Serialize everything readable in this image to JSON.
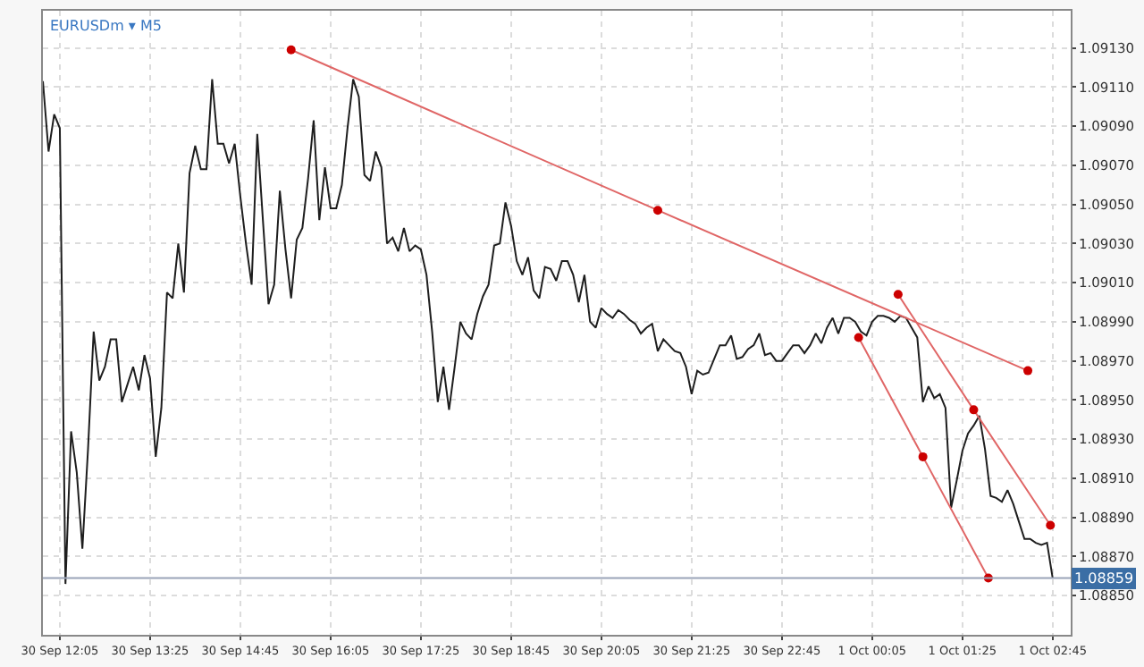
{
  "chart_data": {
    "type": "line",
    "title": "EURUSDm ▾ M5",
    "xlim": [
      "--09-30T11:50",
      "--10-01T03:01"
    ],
    "xticks": [
      {
        "value": "--09-30T12:05",
        "label": "30 Sep 12:05"
      },
      {
        "value": "--09-30T13:25",
        "label": "30 Sep 13:25"
      },
      {
        "value": "--09-30T14:45",
        "label": "30 Sep 14:45"
      },
      {
        "value": "--09-30T16:05",
        "label": "30 Sep 16:05"
      },
      {
        "value": "--09-30T17:25",
        "label": "30 Sep 17:25"
      },
      {
        "value": "--09-30T18:45",
        "label": "30 Sep 18:45"
      },
      {
        "value": "--09-30T20:05",
        "label": "30 Sep 20:05"
      },
      {
        "value": "--09-30T21:25",
        "label": "30 Sep 21:25"
      },
      {
        "value": "--09-30T22:45",
        "label": "30 Sep 22:45"
      },
      {
        "value": "--10-01T00:05",
        "label": "1 Oct 00:05"
      },
      {
        "value": "--10-01T01:25",
        "label": "1 Oct 01:25"
      },
      {
        "value": "--10-01T02:45",
        "label": "1 Oct 02:45"
      }
    ],
    "ylim": [
      1.0883,
      1.09149
    ],
    "yticks": [
      {
        "value": 1.0885,
        "label": "1.08850"
      },
      {
        "value": 1.0887,
        "label": "1.08870"
      },
      {
        "value": 1.0889,
        "label": "1.08890"
      },
      {
        "value": 1.0891,
        "label": "1.08910"
      },
      {
        "value": 1.0893,
        "label": "1.08930"
      },
      {
        "value": 1.0895,
        "label": "1.08950"
      },
      {
        "value": 1.0897,
        "label": "1.08970"
      },
      {
        "value": 1.0899,
        "label": "1.08990"
      },
      {
        "value": 1.0901,
        "label": "1.09010"
      },
      {
        "value": 1.0903,
        "label": "1.09030"
      },
      {
        "value": 1.0905,
        "label": "1.09050"
      },
      {
        "value": 1.0907,
        "label": "1.09070"
      },
      {
        "value": 1.0909,
        "label": "1.09090"
      },
      {
        "value": 1.0911,
        "label": "1.09110"
      },
      {
        "value": 1.0913,
        "label": "1.09130"
      }
    ],
    "grid": true,
    "marker": "none",
    "line_style": "solid",
    "ref_lines": [
      {
        "axis": "y",
        "value": 1.08859,
        "label": "1.08859",
        "color": "#9aa3b8"
      }
    ],
    "series": [
      {
        "color": "#1e1e1e",
        "x": [
          "--09-30T11:50",
          "--09-30T11:55",
          "--09-30T12:00",
          "--09-30T12:05",
          "--09-30T12:10",
          "--09-30T12:15",
          "--09-30T12:20",
          "--09-30T12:25",
          "--09-30T12:30",
          "--09-30T12:35",
          "--09-30T12:40",
          "--09-30T12:45",
          "--09-30T12:50",
          "--09-30T12:55",
          "--09-30T13:00",
          "--09-30T13:05",
          "--09-30T13:10",
          "--09-30T13:15",
          "--09-30T13:20",
          "--09-30T13:25",
          "--09-30T13:30",
          "--09-30T13:35",
          "--09-30T13:40",
          "--09-30T13:45",
          "--09-30T13:50",
          "--09-30T13:55",
          "--09-30T14:00",
          "--09-30T14:05",
          "--09-30T14:10",
          "--09-30T14:15",
          "--09-30T14:20",
          "--09-30T14:25",
          "--09-30T14:30",
          "--09-30T14:35",
          "--09-30T14:40",
          "--09-30T14:45",
          "--09-30T14:50",
          "--09-30T14:55",
          "--09-30T15:00",
          "--09-30T15:05",
          "--09-30T15:10",
          "--09-30T15:15",
          "--09-30T15:20",
          "--09-30T15:25",
          "--09-30T15:30",
          "--09-30T15:35",
          "--09-30T15:40",
          "--09-30T15:45",
          "--09-30T15:50",
          "--09-30T15:55",
          "--09-30T16:00",
          "--09-30T16:05",
          "--09-30T16:10",
          "--09-30T16:15",
          "--09-30T16:20",
          "--09-30T16:25",
          "--09-30T16:30",
          "--09-30T16:35",
          "--09-30T16:40",
          "--09-30T16:45",
          "--09-30T16:50",
          "--09-30T16:55",
          "--09-30T17:00",
          "--09-30T17:05",
          "--09-30T17:10",
          "--09-30T17:15",
          "--09-30T17:20",
          "--09-30T17:25",
          "--09-30T17:30",
          "--09-30T17:35",
          "--09-30T17:40",
          "--09-30T17:45",
          "--09-30T17:50",
          "--09-30T17:55",
          "--09-30T18:00",
          "--09-30T18:05",
          "--09-30T18:10",
          "--09-30T18:15",
          "--09-30T18:20",
          "--09-30T18:25",
          "--09-30T18:30",
          "--09-30T18:35",
          "--09-30T18:40",
          "--09-30T18:45",
          "--09-30T18:50",
          "--09-30T18:55",
          "--09-30T19:00",
          "--09-30T19:05",
          "--09-30T19:10",
          "--09-30T19:15",
          "--09-30T19:20",
          "--09-30T19:25",
          "--09-30T19:30",
          "--09-30T19:35",
          "--09-30T19:40",
          "--09-30T19:45",
          "--09-30T19:50",
          "--09-30T19:55",
          "--09-30T20:00",
          "--09-30T20:05",
          "--09-30T20:10",
          "--09-30T20:15",
          "--09-30T20:20",
          "--09-30T20:25",
          "--09-30T20:30",
          "--09-30T20:35",
          "--09-30T20:40",
          "--09-30T20:45",
          "--09-30T20:50",
          "--09-30T20:55",
          "--09-30T21:00",
          "--09-30T21:05",
          "--09-30T21:10",
          "--09-30T21:15",
          "--09-30T21:20",
          "--09-30T21:25",
          "--09-30T21:30",
          "--09-30T21:35",
          "--09-30T21:40",
          "--09-30T21:45",
          "--09-30T21:50",
          "--09-30T21:55",
          "--09-30T22:00",
          "--09-30T22:05",
          "--09-30T22:10",
          "--09-30T22:15",
          "--09-30T22:20",
          "--09-30T22:25",
          "--09-30T22:30",
          "--09-30T22:35",
          "--09-30T22:40",
          "--09-30T22:45",
          "--09-30T22:50",
          "--09-30T22:55",
          "--09-30T23:00",
          "--09-30T23:05",
          "--09-30T23:10",
          "--09-30T23:15",
          "--09-30T23:20",
          "--09-30T23:25",
          "--09-30T23:30",
          "--09-30T23:35",
          "--09-30T23:40",
          "--09-30T23:45",
          "--09-30T23:50",
          "--09-30T23:55",
          "--10-01T00:00",
          "--10-01T00:05",
          "--10-01T00:10",
          "--10-01T00:15",
          "--10-01T00:20",
          "--10-01T00:25",
          "--10-01T00:30",
          "--10-01T00:35",
          "--10-01T00:40",
          "--10-01T00:45",
          "--10-01T00:50",
          "--10-01T00:55",
          "--10-01T01:00",
          "--10-01T01:05",
          "--10-01T01:10",
          "--10-01T01:15",
          "--10-01T01:20",
          "--10-01T01:25",
          "--10-01T01:30",
          "--10-01T01:35",
          "--10-01T01:40",
          "--10-01T01:45",
          "--10-01T01:50",
          "--10-01T01:55",
          "--10-01T02:00",
          "--10-01T02:05",
          "--10-01T02:10",
          "--10-01T02:15",
          "--10-01T02:20",
          "--10-01T02:25",
          "--10-01T02:30",
          "--10-01T02:35",
          "--10-01T02:40",
          "--10-01T02:45"
        ],
        "values": [
          1.09113,
          1.09077,
          1.09096,
          1.09089,
          1.08856,
          1.08934,
          1.08913,
          1.08874,
          1.08925,
          1.08985,
          1.0896,
          1.08967,
          1.08981,
          1.08981,
          1.08949,
          1.08958,
          1.08967,
          1.08955,
          1.08973,
          1.08961,
          1.08921,
          1.08946,
          1.09005,
          1.09002,
          1.0903,
          1.09005,
          1.09066,
          1.0908,
          1.09068,
          1.09068,
          1.09114,
          1.09081,
          1.09081,
          1.09071,
          1.09081,
          1.09054,
          1.0903,
          1.09009,
          1.09086,
          1.09042,
          1.08999,
          1.09009,
          1.09057,
          1.09027,
          1.09002,
          1.09032,
          1.09038,
          1.09063,
          1.09093,
          1.09042,
          1.09069,
          1.09048,
          1.09048,
          1.0906,
          1.09089,
          1.09114,
          1.09105,
          1.09065,
          1.09062,
          1.09077,
          1.09069,
          1.0903,
          1.09033,
          1.09026,
          1.09038,
          1.09026,
          1.09029,
          1.09027,
          1.09014,
          1.08985,
          1.08949,
          1.08967,
          1.08945,
          1.08967,
          1.0899,
          1.08984,
          1.08981,
          1.08994,
          1.09003,
          1.09009,
          1.09029,
          1.0903,
          1.09051,
          1.09039,
          1.09021,
          1.09014,
          1.09023,
          1.09006,
          1.09002,
          1.09018,
          1.09017,
          1.09011,
          1.09021,
          1.09021,
          1.09014,
          1.09,
          1.09014,
          1.0899,
          1.08987,
          1.08997,
          1.08994,
          1.08992,
          1.08996,
          1.08994,
          1.08991,
          1.08989,
          1.08984,
          1.08987,
          1.08989,
          1.08975,
          1.08981,
          1.08978,
          1.08975,
          1.08974,
          1.08967,
          1.08953,
          1.08965,
          1.08963,
          1.08964,
          1.08971,
          1.08978,
          1.08978,
          1.08983,
          1.08971,
          1.08972,
          1.08976,
          1.08978,
          1.08984,
          1.08973,
          1.08974,
          1.0897,
          1.0897,
          1.08974,
          1.08978,
          1.08978,
          1.08974,
          1.08978,
          1.08984,
          1.08979,
          1.08987,
          1.08992,
          1.08984,
          1.08992,
          1.08992,
          1.0899,
          1.08985,
          1.08983,
          1.0899,
          1.08993,
          1.08993,
          1.08992,
          1.0899,
          1.08993,
          1.08992,
          1.08987,
          1.08982,
          1.08949,
          1.08957,
          1.08951,
          1.08953,
          1.08946,
          1.08895,
          1.08909,
          1.08924,
          1.08933,
          1.08937,
          1.08942,
          1.08925,
          1.08901,
          1.089,
          1.08898,
          1.08904,
          1.08897,
          1.08888,
          1.08879,
          1.08879,
          1.08877,
          1.08876,
          1.08877,
          1.08859
        ]
      },
      {
        "type": "line",
        "color": "#e06666",
        "marker": "circle",
        "x": [
          "--09-30T15:30",
          "--09-30T20:55",
          "--10-01T02:23"
        ],
        "values": [
          1.09129,
          1.09047,
          1.08965
        ]
      },
      {
        "type": "line",
        "color": "#e06666",
        "marker": "circle",
        "x": [
          "--09-30T23:53",
          "--10-01T00:50",
          "--10-01T01:48"
        ],
        "values": [
          1.08982,
          1.08921,
          1.08859
        ]
      },
      {
        "type": "line",
        "color": "#e06666",
        "marker": "circle",
        "x": [
          "--10-01T00:28",
          "--10-01T01:35",
          "--10-01T02:43"
        ],
        "values": [
          1.09004,
          1.08945,
          1.08886
        ]
      }
    ]
  }
}
